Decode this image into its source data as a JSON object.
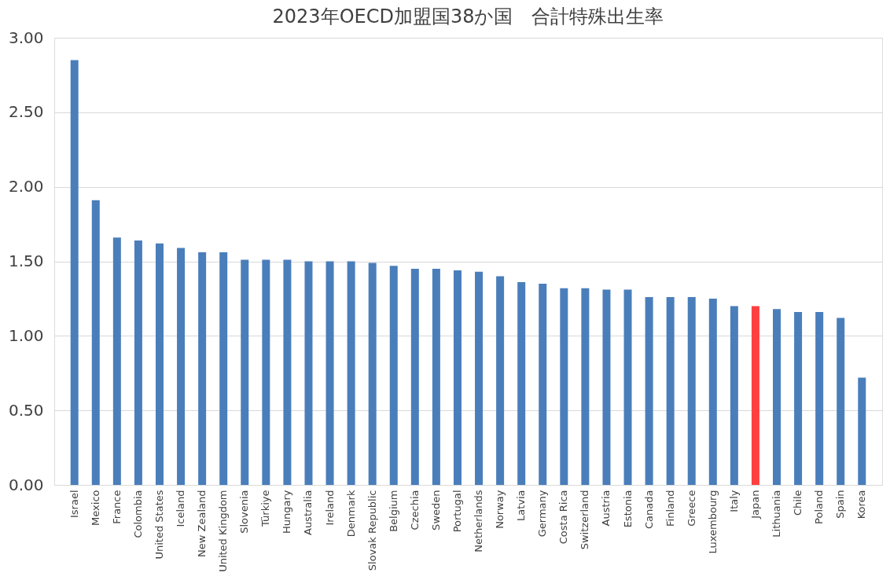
{
  "chart_data": {
    "type": "bar",
    "title": "2023年OECD加盟国38か国　合計特殊出生率",
    "categories": [
      "Israel",
      "Mexico",
      "France",
      "Colombia",
      "United States",
      "Iceland",
      "New Zealand",
      "United Kingdom",
      "Slovenia",
      "Türkiye",
      "Hungary",
      "Australia",
      "Ireland",
      "Denmark",
      "Slovak Republic",
      "Belgium",
      "Czechia",
      "Sweden",
      "Portugal",
      "Netherlands",
      "Norway",
      "Latvia",
      "Germany",
      "Costa Rica",
      "Switzerland",
      "Austria",
      "Estonia",
      "Canada",
      "Finland",
      "Greece",
      "Luxembourg",
      "Italy",
      "Japan",
      "Lithuania",
      "Chile",
      "Poland",
      "Spain",
      "Korea"
    ],
    "values": [
      2.85,
      1.91,
      1.66,
      1.64,
      1.62,
      1.59,
      1.56,
      1.56,
      1.51,
      1.51,
      1.51,
      1.5,
      1.5,
      1.5,
      1.49,
      1.47,
      1.45,
      1.45,
      1.44,
      1.43,
      1.4,
      1.36,
      1.35,
      1.32,
      1.32,
      1.31,
      1.31,
      1.26,
      1.26,
      1.26,
      1.25,
      1.2,
      1.2,
      1.18,
      1.16,
      1.16,
      1.12,
      0.72
    ],
    "colors": [
      "#4a7ebb",
      "#4a7ebb",
      "#4a7ebb",
      "#4a7ebb",
      "#4a7ebb",
      "#4a7ebb",
      "#4a7ebb",
      "#4a7ebb",
      "#4a7ebb",
      "#4a7ebb",
      "#4a7ebb",
      "#4a7ebb",
      "#4a7ebb",
      "#4a7ebb",
      "#4a7ebb",
      "#4a7ebb",
      "#4a7ebb",
      "#4a7ebb",
      "#4a7ebb",
      "#4a7ebb",
      "#4a7ebb",
      "#4a7ebb",
      "#4a7ebb",
      "#4a7ebb",
      "#4a7ebb",
      "#4a7ebb",
      "#4a7ebb",
      "#4a7ebb",
      "#4a7ebb",
      "#4a7ebb",
      "#4a7ebb",
      "#4a7ebb",
      "#ff4040",
      "#4a7ebb",
      "#4a7ebb",
      "#4a7ebb",
      "#4a7ebb",
      "#4a7ebb"
    ],
    "ylim": [
      0,
      3
    ],
    "yticks": [
      {
        "value": 0,
        "label": "0.00"
      },
      {
        "value": 0.5,
        "label": "0.50"
      },
      {
        "value": 1,
        "label": "1.00"
      },
      {
        "value": 1.5,
        "label": "1.50"
      },
      {
        "value": 2,
        "label": "2.00"
      },
      {
        "value": 2.5,
        "label": "2.50"
      },
      {
        "value": 3,
        "label": "3.00"
      }
    ],
    "grid": "y"
  }
}
